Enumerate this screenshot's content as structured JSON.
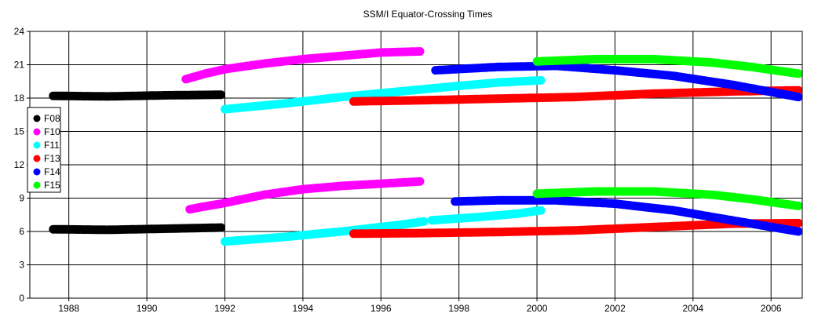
{
  "chart_data": {
    "type": "scatter",
    "title": "SSM/I Equator-Crossing Times",
    "xlabel": "",
    "ylabel": "",
    "xlim": [
      1987.0,
      2006.8
    ],
    "ylim": [
      0,
      24
    ],
    "x_ticks": [
      1988,
      1990,
      1992,
      1994,
      1996,
      1998,
      2000,
      2002,
      2004,
      2006
    ],
    "y_ticks": [
      0,
      3,
      6,
      9,
      12,
      15,
      18,
      21,
      24
    ],
    "grid": true,
    "legend_position": "left",
    "series": [
      {
        "name": "F08",
        "color": "#000000",
        "tracks": [
          {
            "points": [
              [
                1987.6,
                18.2
              ],
              [
                1989.0,
                18.15
              ],
              [
                1990.5,
                18.25
              ],
              [
                1991.9,
                18.3
              ]
            ]
          },
          {
            "points": [
              [
                1987.6,
                6.2
              ],
              [
                1989.0,
                6.15
              ],
              [
                1990.5,
                6.25
              ],
              [
                1991.9,
                6.35
              ]
            ]
          }
        ]
      },
      {
        "name": "F10",
        "color": "#ff00ff",
        "tracks": [
          {
            "points": [
              [
                1991.0,
                19.7
              ],
              [
                1991.5,
                20.2
              ],
              [
                1992.0,
                20.6
              ],
              [
                1993.0,
                21.1
              ],
              [
                1994.0,
                21.5
              ],
              [
                1995.0,
                21.8
              ],
              [
                1996.0,
                22.1
              ],
              [
                1997.0,
                22.2
              ]
            ]
          },
          {
            "points": [
              [
                1991.1,
                8.0
              ],
              [
                1991.4,
                8.2
              ],
              [
                1991.9,
                8.5
              ],
              [
                1993.0,
                9.3
              ],
              [
                1994.0,
                9.8
              ],
              [
                1995.0,
                10.1
              ],
              [
                1996.0,
                10.3
              ],
              [
                1997.0,
                10.5
              ]
            ]
          }
        ]
      },
      {
        "name": "F11",
        "color": "#00ffff",
        "tracks": [
          {
            "points": [
              [
                1992.0,
                17.0
              ],
              [
                1993.5,
                17.5
              ],
              [
                1995.0,
                18.1
              ],
              [
                1996.5,
                18.6
              ],
              [
                1998.0,
                19.1
              ],
              [
                1999.0,
                19.4
              ],
              [
                2000.1,
                19.6
              ]
            ]
          },
          {
            "points": [
              [
                1992.0,
                5.1
              ],
              [
                1993.5,
                5.5
              ],
              [
                1995.0,
                6.0
              ],
              [
                1996.5,
                6.6
              ],
              [
                1997.1,
                6.9
              ]
            ]
          },
          {
            "points": [
              [
                1997.3,
                7.0
              ],
              [
                1998.5,
                7.3
              ],
              [
                1999.5,
                7.6
              ],
              [
                2000.1,
                7.9
              ]
            ]
          }
        ]
      },
      {
        "name": "F13",
        "color": "#ff0000",
        "tracks": [
          {
            "points": [
              [
                1995.3,
                17.7
              ],
              [
                1997.0,
                17.8
              ],
              [
                1999.0,
                17.95
              ],
              [
                2001.0,
                18.1
              ],
              [
                2003.0,
                18.4
              ],
              [
                2005.0,
                18.6
              ],
              [
                2006.7,
                18.7
              ]
            ]
          },
          {
            "points": [
              [
                1995.3,
                5.8
              ],
              [
                1997.0,
                5.85
              ],
              [
                1999.0,
                5.95
              ],
              [
                2001.0,
                6.1
              ],
              [
                2003.0,
                6.4
              ],
              [
                2005.0,
                6.7
              ],
              [
                2006.7,
                6.75
              ]
            ]
          }
        ]
      },
      {
        "name": "F14",
        "color": "#0000ff",
        "tracks": [
          {
            "points": [
              [
                1997.4,
                20.5
              ],
              [
                1999.0,
                20.8
              ],
              [
                2000.5,
                20.9
              ],
              [
                2002.0,
                20.5
              ],
              [
                2003.5,
                20.0
              ],
              [
                2005.0,
                19.2
              ],
              [
                2006.7,
                18.1
              ]
            ]
          },
          {
            "points": [
              [
                1997.9,
                8.7
              ],
              [
                1999.0,
                8.8
              ],
              [
                2000.5,
                8.8
              ],
              [
                2002.0,
                8.5
              ],
              [
                2003.5,
                7.9
              ],
              [
                2005.0,
                7.0
              ],
              [
                2006.7,
                6.0
              ]
            ]
          }
        ]
      },
      {
        "name": "F15",
        "color": "#00ff00",
        "tracks": [
          {
            "points": [
              [
                2000.0,
                21.3
              ],
              [
                2001.5,
                21.5
              ],
              [
                2003.0,
                21.5
              ],
              [
                2004.5,
                21.2
              ],
              [
                2005.5,
                20.8
              ],
              [
                2006.7,
                20.2
              ]
            ]
          },
          {
            "points": [
              [
                2000.0,
                9.4
              ],
              [
                2001.5,
                9.6
              ],
              [
                2003.0,
                9.6
              ],
              [
                2004.5,
                9.3
              ],
              [
                2005.5,
                8.9
              ],
              [
                2006.7,
                8.3
              ]
            ]
          }
        ]
      }
    ]
  }
}
